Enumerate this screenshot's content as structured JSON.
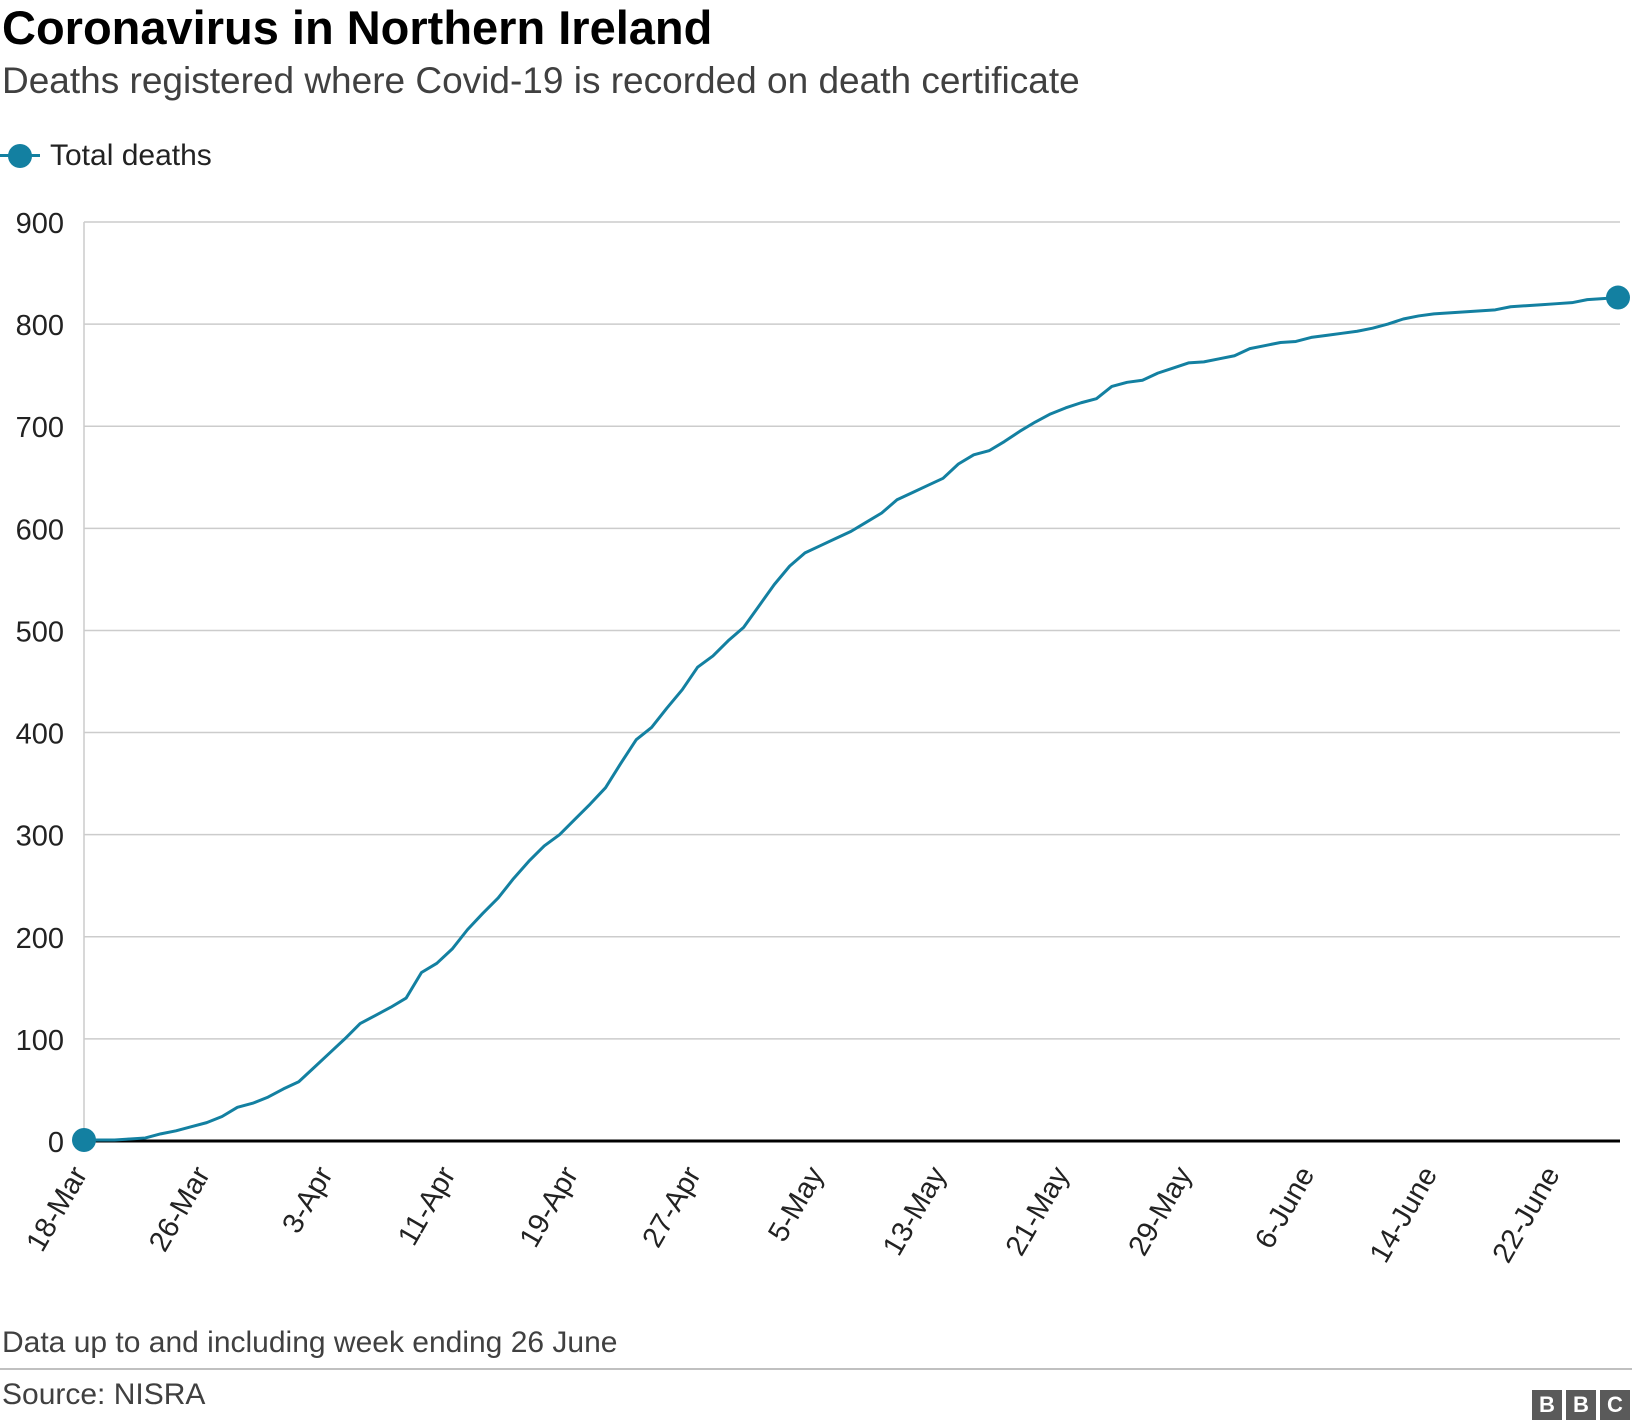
{
  "header": {
    "title": "Coronavirus in Northern Ireland",
    "subtitle": "Deaths registered where Covid-19 is recorded on death certificate"
  },
  "legend": {
    "label": "Total deaths"
  },
  "footer": {
    "note": "Data up to and including week ending 26 June",
    "source": "Source: NISRA",
    "logo": [
      "B",
      "B",
      "C"
    ]
  },
  "colors": {
    "series": "#1380a1",
    "grid": "#cccccc",
    "baseline": "#000000"
  },
  "chart_data": {
    "type": "line",
    "title": "Coronavirus in Northern Ireland",
    "subtitle": "Deaths registered where Covid-19 is recorded on death certificate",
    "xlabel": "",
    "ylabel": "",
    "ylim": [
      0,
      900
    ],
    "yticks": [
      "0",
      "100",
      "200",
      "300",
      "400",
      "500",
      "600",
      "700",
      "800",
      "900"
    ],
    "xticks": [
      "18-Mar",
      "26-Mar",
      "3-Apr",
      "11-Apr",
      "19-Apr",
      "27-Apr",
      "5-May",
      "13-May",
      "21-May",
      "29-May",
      "6-June",
      "14-June",
      "22-June"
    ],
    "grid": true,
    "legend_position": "top-left",
    "x_start": "2020-03-18",
    "x_end": "2020-06-26",
    "series": [
      {
        "name": "Total deaths",
        "x": [
          "2020-03-18",
          "2020-03-19",
          "2020-03-20",
          "2020-03-21",
          "2020-03-22",
          "2020-03-23",
          "2020-03-24",
          "2020-03-25",
          "2020-03-26",
          "2020-03-27",
          "2020-03-28",
          "2020-03-29",
          "2020-03-30",
          "2020-03-31",
          "2020-04-01",
          "2020-04-02",
          "2020-04-03",
          "2020-04-04",
          "2020-04-05",
          "2020-04-06",
          "2020-04-07",
          "2020-04-08",
          "2020-04-09",
          "2020-04-10",
          "2020-04-11",
          "2020-04-12",
          "2020-04-13",
          "2020-04-14",
          "2020-04-15",
          "2020-04-16",
          "2020-04-17",
          "2020-04-18",
          "2020-04-19",
          "2020-04-20",
          "2020-04-21",
          "2020-04-22",
          "2020-04-23",
          "2020-04-24",
          "2020-04-25",
          "2020-04-26",
          "2020-04-27",
          "2020-04-28",
          "2020-04-29",
          "2020-04-30",
          "2020-05-01",
          "2020-05-02",
          "2020-05-03",
          "2020-05-04",
          "2020-05-05",
          "2020-05-06",
          "2020-05-07",
          "2020-05-08",
          "2020-05-09",
          "2020-05-10",
          "2020-05-11",
          "2020-05-12",
          "2020-05-13",
          "2020-05-14",
          "2020-05-15",
          "2020-05-16",
          "2020-05-17",
          "2020-05-18",
          "2020-05-19",
          "2020-05-20",
          "2020-05-21",
          "2020-05-22",
          "2020-05-23",
          "2020-05-24",
          "2020-05-25",
          "2020-05-26",
          "2020-05-27",
          "2020-05-28",
          "2020-05-29",
          "2020-05-30",
          "2020-05-31",
          "2020-06-01",
          "2020-06-02",
          "2020-06-03",
          "2020-06-04",
          "2020-06-05",
          "2020-06-06",
          "2020-06-07",
          "2020-06-08",
          "2020-06-09",
          "2020-06-10",
          "2020-06-11",
          "2020-06-12",
          "2020-06-13",
          "2020-06-14",
          "2020-06-15",
          "2020-06-16",
          "2020-06-17",
          "2020-06-18",
          "2020-06-19",
          "2020-06-20",
          "2020-06-21",
          "2020-06-22",
          "2020-06-23",
          "2020-06-24",
          "2020-06-25",
          "2020-06-26"
        ],
        "values": [
          1,
          1,
          1,
          2,
          3,
          7,
          10,
          14,
          18,
          24,
          33,
          37,
          43,
          51,
          58,
          72,
          86,
          100,
          115,
          123,
          131,
          140,
          165,
          174,
          188,
          207,
          223,
          238,
          257,
          274,
          289,
          300,
          315,
          330,
          346,
          370,
          393,
          405,
          424,
          442,
          464,
          475,
          490,
          503,
          524,
          545,
          563,
          576,
          583,
          590,
          597,
          606,
          615,
          628,
          635,
          642,
          649,
          663,
          672,
          676,
          685,
          695,
          704,
          712,
          718,
          723,
          727,
          739,
          743,
          745,
          752,
          757,
          762,
          763,
          766,
          769,
          776,
          779,
          782,
          783,
          787,
          789,
          791,
          793,
          796,
          800,
          805,
          808,
          810,
          811,
          812,
          813,
          814,
          817,
          818,
          819,
          820,
          821,
          824,
          825,
          826
        ]
      }
    ]
  }
}
